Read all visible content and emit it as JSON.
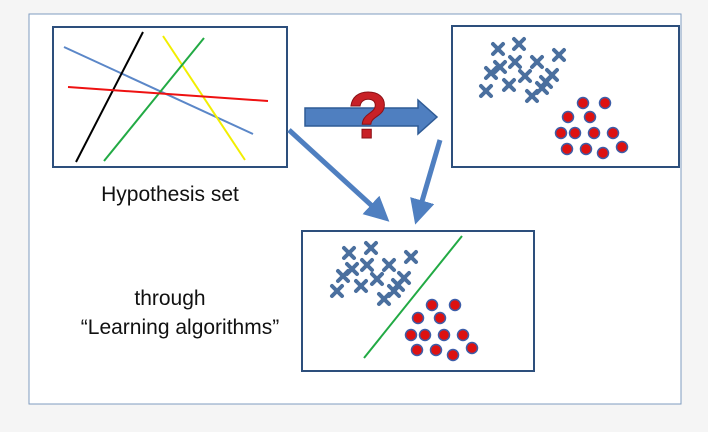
{
  "labels": {
    "hypothesis_set": "Hypothesis set",
    "through": "through",
    "learning_algorithms": "“Learning algorithms”"
  },
  "question_mark": "?",
  "colors": {
    "frame": "#5b7faa",
    "box_border": "#2d4f7c",
    "arrow": "#4f7fc0",
    "arrow_dark": "#2f5b95",
    "cross": "#4a6f9e",
    "dot_fill": "#dd1111",
    "dot_stroke": "#3d5da8",
    "question": "#c82026",
    "line_blue": "#5b87c8",
    "line_black": "#000000",
    "line_yellow": "#f2ee00",
    "line_green": "#22aa44",
    "line_red": "#ee1111"
  },
  "icons": {
    "cross_marker": "x-marker-icon",
    "dot_marker": "circle-marker-icon",
    "arrow": "arrow-icon"
  }
}
